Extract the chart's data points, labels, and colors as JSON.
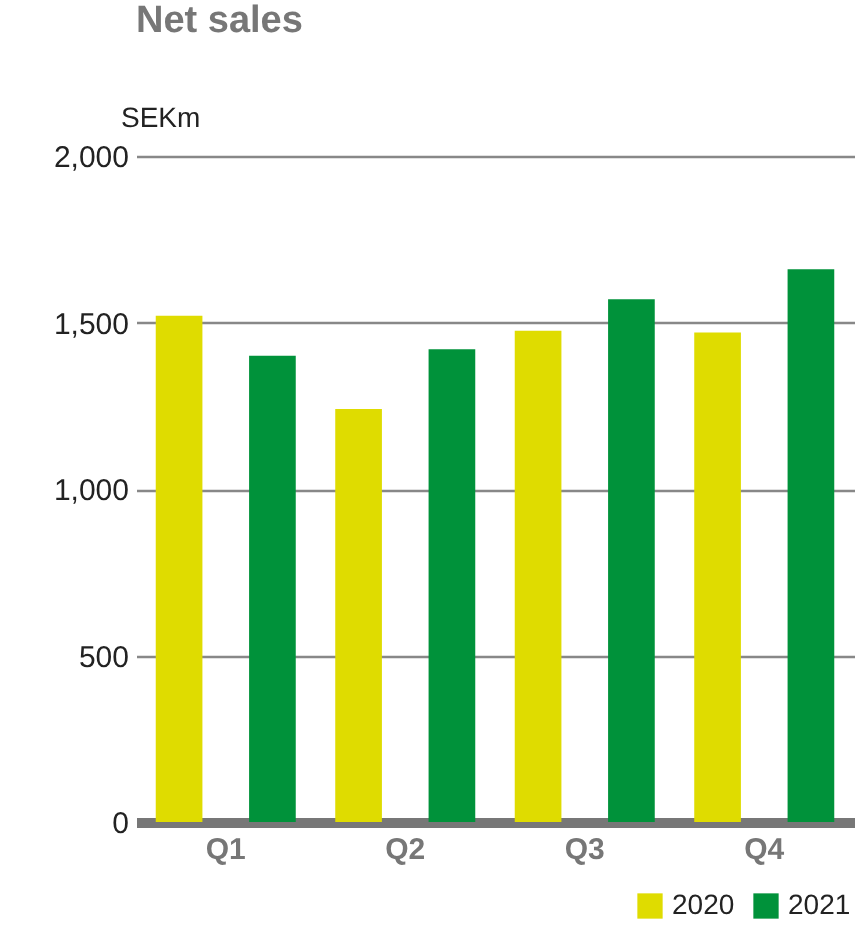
{
  "chart_data": {
    "type": "bar",
    "title": "Net sales",
    "ylabel": "SEKm",
    "categories": [
      "Q1",
      "Q2",
      "Q3",
      "Q4"
    ],
    "series": [
      {
        "name": "2020",
        "color": "#dfdc00",
        "values": [
          1520,
          1240,
          1475,
          1470
        ]
      },
      {
        "name": "2021",
        "color": "#00923a",
        "values": [
          1400,
          1420,
          1570,
          1660
        ]
      }
    ],
    "ylim": [
      0,
      2000
    ],
    "yticks": [
      0,
      500,
      {
        "value": 1000,
        "label": "1,000"
      },
      {
        "value": 1500,
        "label": "1,500"
      },
      {
        "value": 2000,
        "label": "2,000"
      }
    ],
    "grid": "y",
    "legend": "bottom right"
  }
}
